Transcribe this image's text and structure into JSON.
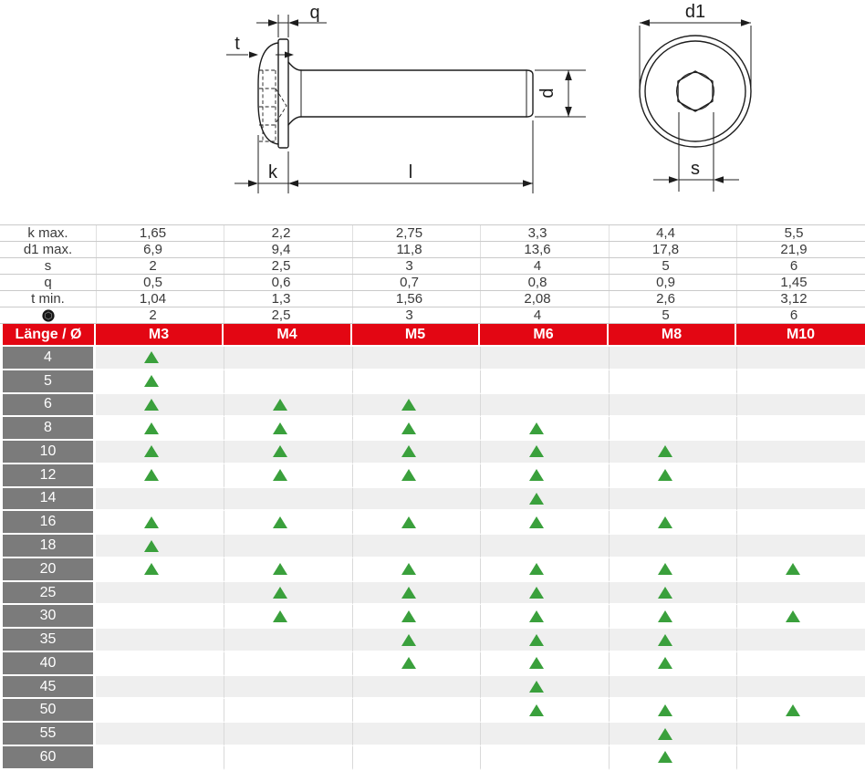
{
  "drawing": {
    "labels": {
      "q": "q",
      "t": "t",
      "k": "k",
      "l": "l",
      "d": "d",
      "d1": "d1",
      "s": "s"
    }
  },
  "spec_table": {
    "rows": [
      {
        "label": "k max.",
        "values": [
          "1,65",
          "2,2",
          "2,75",
          "3,3",
          "4,4",
          "5,5"
        ]
      },
      {
        "label": "d1 max.",
        "values": [
          "6,9",
          "9,4",
          "11,8",
          "13,6",
          "17,8",
          "21,9"
        ]
      },
      {
        "label": "s",
        "values": [
          "2",
          "2,5",
          "3",
          "4",
          "5",
          "6"
        ]
      },
      {
        "label": "q",
        "values": [
          "0,5",
          "0,6",
          "0,7",
          "0,8",
          "0,9",
          "1,45"
        ]
      },
      {
        "label": "t min.",
        "values": [
          "1,04",
          "1,3",
          "1,56",
          "2,08",
          "2,6",
          "3,12"
        ]
      },
      {
        "icon": "hex-socket-icon",
        "label": "",
        "values": [
          "2",
          "2,5",
          "3",
          "4",
          "5",
          "6"
        ]
      }
    ]
  },
  "matrix": {
    "header": {
      "corner": "Länge / Ø",
      "columns": [
        "M3",
        "M4",
        "M5",
        "M6",
        "M8",
        "M10"
      ]
    },
    "availability_icon": "triangle-up-icon",
    "rows": [
      {
        "length": "4",
        "available": [
          1,
          0,
          0,
          0,
          0,
          0
        ]
      },
      {
        "length": "5",
        "available": [
          1,
          0,
          0,
          0,
          0,
          0
        ]
      },
      {
        "length": "6",
        "available": [
          1,
          1,
          1,
          0,
          0,
          0
        ]
      },
      {
        "length": "8",
        "available": [
          1,
          1,
          1,
          1,
          0,
          0
        ]
      },
      {
        "length": "10",
        "available": [
          1,
          1,
          1,
          1,
          1,
          0
        ]
      },
      {
        "length": "12",
        "available": [
          1,
          1,
          1,
          1,
          1,
          0
        ]
      },
      {
        "length": "14",
        "available": [
          0,
          0,
          0,
          1,
          0,
          0
        ]
      },
      {
        "length": "16",
        "available": [
          1,
          1,
          1,
          1,
          1,
          0
        ]
      },
      {
        "length": "18",
        "available": [
          1,
          0,
          0,
          0,
          0,
          0
        ]
      },
      {
        "length": "20",
        "available": [
          1,
          1,
          1,
          1,
          1,
          1
        ]
      },
      {
        "length": "25",
        "available": [
          0,
          1,
          1,
          1,
          1,
          0
        ]
      },
      {
        "length": "30",
        "available": [
          0,
          1,
          1,
          1,
          1,
          1
        ]
      },
      {
        "length": "35",
        "available": [
          0,
          0,
          1,
          1,
          1,
          0
        ]
      },
      {
        "length": "40",
        "available": [
          0,
          0,
          1,
          1,
          1,
          0
        ]
      },
      {
        "length": "45",
        "available": [
          0,
          0,
          0,
          1,
          0,
          0
        ]
      },
      {
        "length": "50",
        "available": [
          0,
          0,
          0,
          1,
          1,
          1
        ]
      },
      {
        "length": "55",
        "available": [
          0,
          0,
          0,
          0,
          1,
          0
        ]
      },
      {
        "length": "60",
        "available": [
          0,
          0,
          0,
          0,
          1,
          0
        ]
      }
    ]
  },
  "colors": {
    "accent_red": "#e30613",
    "header_gray": "#7b7b7b",
    "row_shade": "#efefef",
    "available_green": "#3aa03c"
  }
}
